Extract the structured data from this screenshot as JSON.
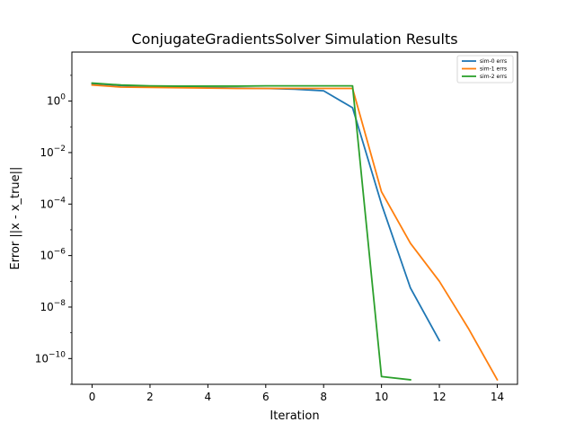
{
  "chart_data": {
    "type": "line",
    "title": "ConjugateGradientsSolver Simulation Results",
    "xlabel": "Iteration",
    "ylabel": "Error ||x - x_true||",
    "xlim": [
      -0.7,
      14.7
    ],
    "ylim": [
      1e-11,
      80
    ],
    "yscale": "log",
    "grid": false,
    "legend_position": "top-right",
    "x_ticks": [
      {
        "value": 0,
        "label": "0"
      },
      {
        "value": 2,
        "label": "2"
      },
      {
        "value": 4,
        "label": "4"
      },
      {
        "value": 6,
        "label": "6"
      },
      {
        "value": 8,
        "label": "8"
      },
      {
        "value": 10,
        "label": "10"
      },
      {
        "value": 12,
        "label": "12"
      },
      {
        "value": 14,
        "label": "14"
      }
    ],
    "y_ticks": [
      {
        "value": 1.0,
        "base": "10",
        "exp": "0"
      },
      {
        "value": 0.01,
        "base": "10",
        "exp": "−2"
      },
      {
        "value": 0.0001,
        "base": "10",
        "exp": "−4"
      },
      {
        "value": 1e-06,
        "base": "10",
        "exp": "−6"
      },
      {
        "value": 1e-08,
        "base": "10",
        "exp": "−8"
      },
      {
        "value": 1e-10,
        "base": "10",
        "exp": "−10"
      }
    ],
    "series": [
      {
        "name": "sim-0 errs",
        "color": "#1f77b4",
        "x": [
          0,
          1,
          2,
          3,
          4,
          5,
          6,
          7,
          8,
          9,
          10,
          11,
          12
        ],
        "values": [
          4.8,
          4.0,
          3.6,
          3.4,
          3.3,
          3.2,
          3.1,
          2.9,
          2.5,
          0.55,
          0.0001,
          5.5e-08,
          5e-10
        ]
      },
      {
        "name": "sim-1 errs",
        "color": "#ff7f0e",
        "x": [
          0,
          1,
          2,
          3,
          4,
          5,
          6,
          7,
          8,
          9,
          10,
          11,
          12,
          13,
          14
        ],
        "values": [
          4.2,
          3.5,
          3.4,
          3.3,
          3.2,
          3.1,
          3.1,
          3.1,
          3.1,
          3.1,
          0.0003,
          3e-06,
          1e-07,
          1.5e-09,
          1.5e-11
        ]
      },
      {
        "name": "sim-2 errs",
        "color": "#2ca02c",
        "x": [
          0,
          1,
          2,
          3,
          4,
          5,
          6,
          7,
          8,
          9,
          10,
          11
        ],
        "values": [
          5.0,
          4.2,
          3.9,
          3.8,
          3.8,
          3.8,
          3.9,
          3.9,
          3.9,
          3.9,
          2e-11,
          1.5e-11
        ]
      }
    ]
  }
}
